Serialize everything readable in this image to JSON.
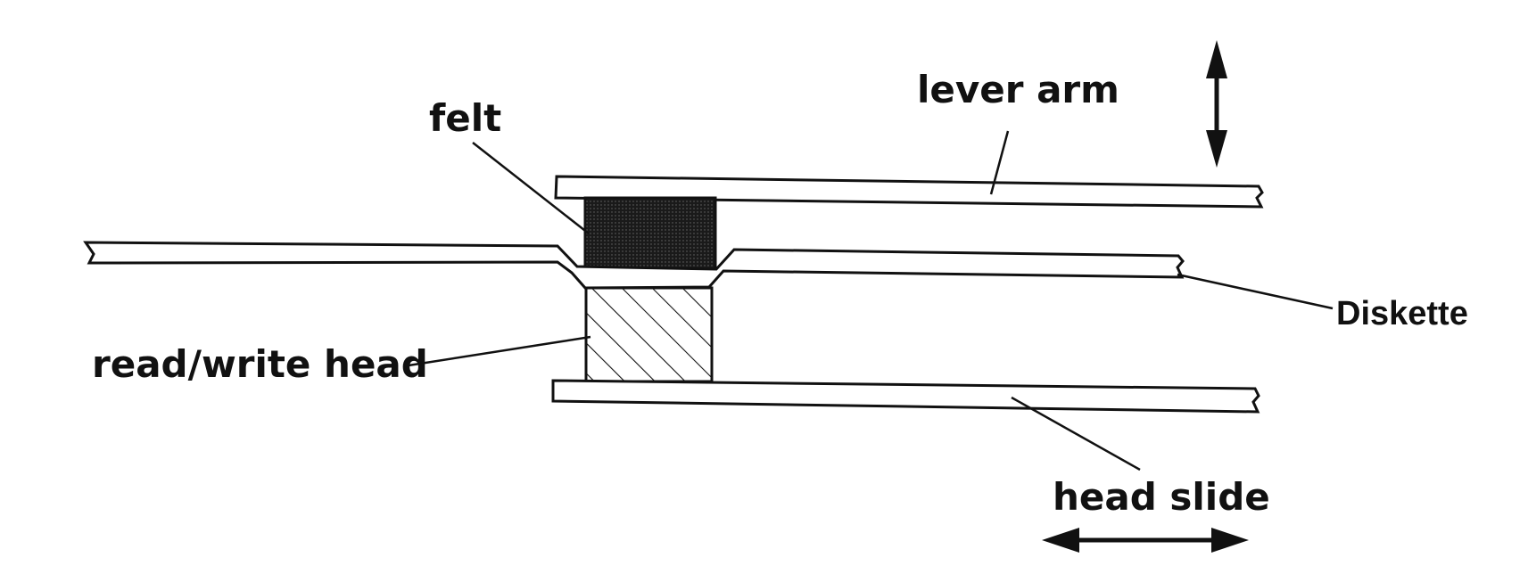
{
  "diagram": {
    "labels": {
      "lever_arm": "lever arm",
      "felt": "felt",
      "diskette": "Diskette",
      "read_write_head": "read/write head",
      "head_slide": "head slide"
    }
  },
  "colors": {
    "ink": "#111111",
    "background": "#ffffff",
    "felt_fill": "#2a2a2a"
  }
}
